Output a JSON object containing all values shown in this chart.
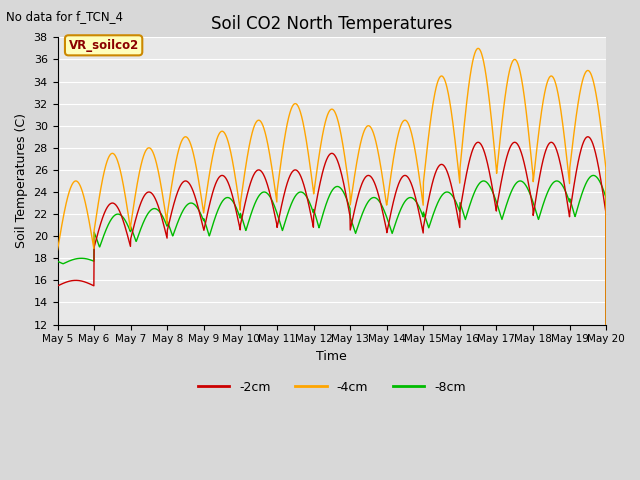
{
  "title": "Soil CO2 North Temperatures",
  "subtitle": "No data for f_TCN_4",
  "xlabel": "Time",
  "ylabel": "Soil Temperatures (C)",
  "ylim": [
    12,
    38
  ],
  "yticks": [
    12,
    14,
    16,
    18,
    20,
    22,
    24,
    26,
    28,
    30,
    32,
    34,
    36,
    38
  ],
  "legend_label": "VR_soilco2",
  "series_labels": [
    "-2cm",
    "-4cm",
    "-8cm"
  ],
  "series_colors": [
    "#cc0000",
    "#ffa500",
    "#00bb00"
  ],
  "background_color": "#e8e8e8",
  "grid_color": "#ffffff",
  "x_tick_labels": [
    "May 5",
    "May 6",
    "May 7",
    "May 8",
    "May 9",
    "May 10",
    "May 11",
    "May 12",
    "May 13",
    "May 14",
    "May 15",
    "May 16",
    "May 17",
    "May 18",
    "May 19",
    "May 20"
  ],
  "figsize": [
    6.4,
    4.8
  ],
  "dpi": 100
}
